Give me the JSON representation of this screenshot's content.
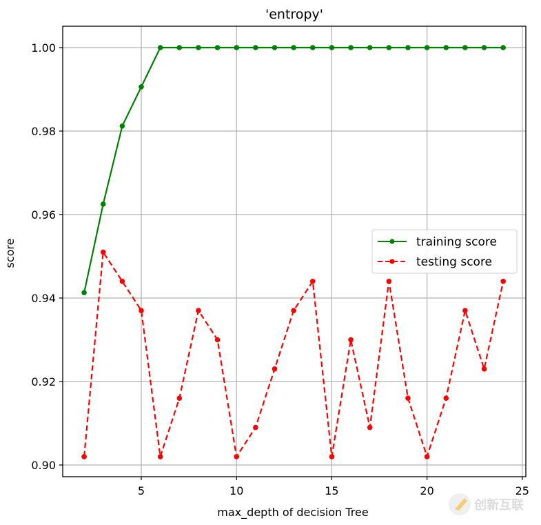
{
  "chart_data": {
    "type": "line",
    "title": "'entropy'",
    "xlabel": "max_depth of decision Tree",
    "ylabel": "score",
    "xlim": [
      1.2,
      25.2
    ],
    "ylim": [
      0.895,
      1.005
    ],
    "xticks": [
      5,
      10,
      15,
      20,
      25
    ],
    "xtick_labels": [
      "5",
      "10",
      "15",
      "20",
      "25"
    ],
    "yticks": [
      0.9,
      0.92,
      0.94,
      0.96,
      0.98,
      1.0
    ],
    "ytick_labels": [
      "0.90",
      "0.92",
      "0.94",
      "0.96",
      "0.98",
      "1.00"
    ],
    "grid": true,
    "legend_position": "center right",
    "x": [
      2,
      3,
      4,
      5,
      6,
      7,
      8,
      9,
      10,
      11,
      12,
      13,
      14,
      15,
      16,
      17,
      18,
      19,
      20,
      21,
      22,
      23,
      24
    ],
    "series": [
      {
        "name": "training score",
        "color": "#008000",
        "linestyle": "solid",
        "marker": "o",
        "values": [
          0.9413,
          0.9625,
          0.9812,
          0.9906,
          1.0,
          1.0,
          1.0,
          1.0,
          1.0,
          1.0,
          1.0,
          1.0,
          1.0,
          1.0,
          1.0,
          1.0,
          1.0,
          1.0,
          1.0,
          1.0,
          1.0,
          1.0,
          1.0
        ]
      },
      {
        "name": "testing score",
        "color": "#ff0000",
        "linestyle": "dashed",
        "marker": "o",
        "values": [
          0.902,
          0.951,
          0.944,
          0.937,
          0.902,
          0.916,
          0.937,
          0.93,
          0.902,
          0.909,
          0.923,
          0.937,
          0.944,
          0.902,
          0.93,
          0.909,
          0.944,
          0.916,
          0.902,
          0.916,
          0.937,
          0.923,
          0.944
        ]
      }
    ]
  },
  "watermark": {
    "text": "创新互联"
  }
}
